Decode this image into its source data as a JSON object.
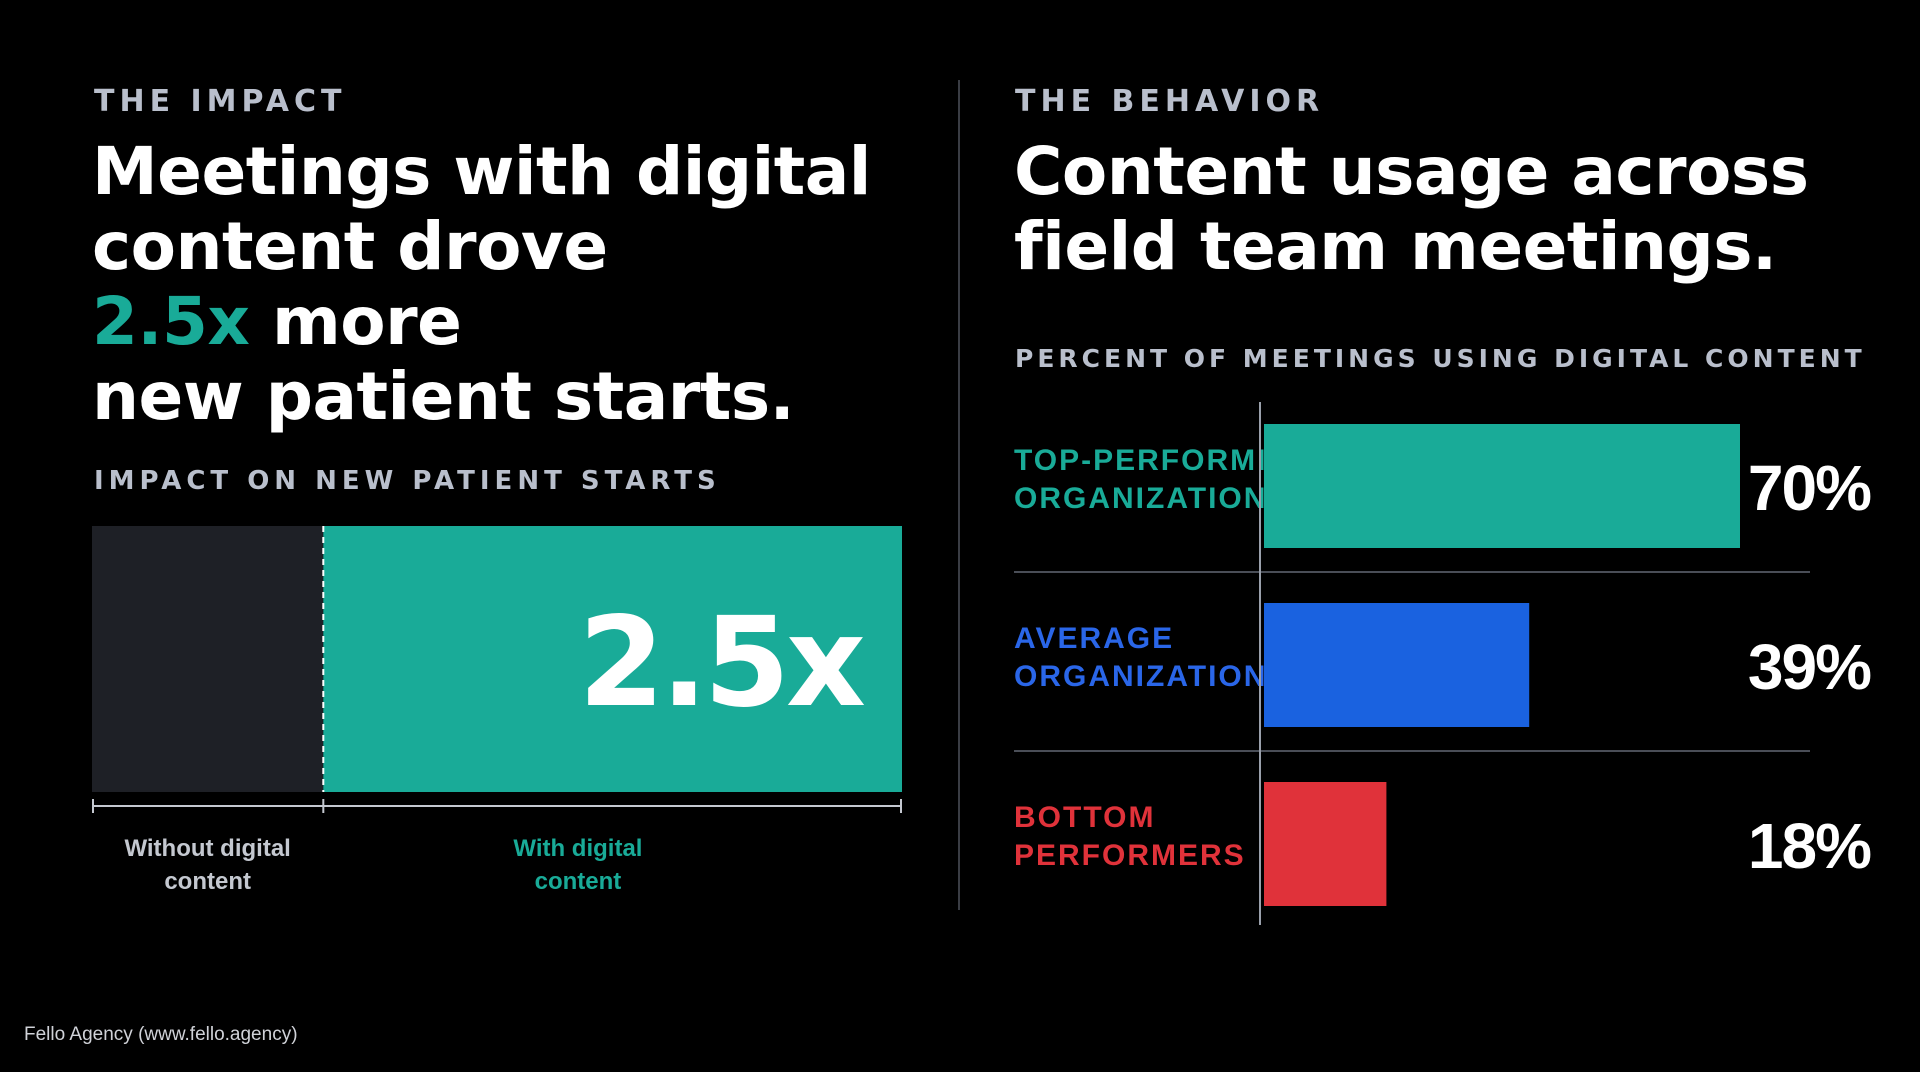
{
  "colors": {
    "background": "#000000",
    "teal": "#19ab98",
    "blue": "#1a62e0",
    "red": "#e0323a",
    "muted": "#b9bfcc",
    "dark_bar": "#1e2026",
    "white": "#ffffff"
  },
  "left": {
    "eyebrow": "THE IMPACT",
    "headline": {
      "line1": "Meetings with digital",
      "line2": "content drove",
      "line3_highlight": "2.5x",
      "line3_rest": " more",
      "line4": "new patient starts."
    },
    "chart_label": "IMPACT ON NEW PATIENT STARTS"
  },
  "right": {
    "eyebrow": "THE BEHAVIOR",
    "headline": {
      "line1": "Content usage across",
      "line2": "field team meetings."
    },
    "chart_label": "PERCENT OF MEETINGS USING DIGITAL CONTENT",
    "rows": [
      {
        "label_line1": "TOP-PERFORMING",
        "label_line2": "ORGANIZATIONS",
        "color": "#19ab98"
      },
      {
        "label_line1": "AVERAGE",
        "label_line2": "ORGANIZATIONS",
        "color": "#2a66e8"
      },
      {
        "label_line1": "BOTTOM",
        "label_line2": "PERFORMERS",
        "color": "#e0323a"
      }
    ]
  },
  "footer": "Fello Agency (www.fello.agency)",
  "chart_data": [
    {
      "type": "bar",
      "orientation": "horizontal-stacked",
      "title": "IMPACT ON NEW PATIENT STARTS",
      "categories": [
        "Without digital content",
        "With digital content"
      ],
      "values": [
        1,
        2.5
      ],
      "value_label": "2.5x",
      "colors": [
        "#1e2026",
        "#19ab98"
      ],
      "label_colors": [
        "#c4c8d0",
        "#19ab98"
      ]
    },
    {
      "type": "bar",
      "orientation": "horizontal",
      "title": "PERCENT OF MEETINGS USING DIGITAL CONTENT",
      "categories": [
        "TOP-PERFORMING ORGANIZATIONS",
        "AVERAGE ORGANIZATIONS",
        "BOTTOM PERFORMERS"
      ],
      "values": [
        70,
        39,
        18
      ],
      "value_labels": [
        "70%",
        "39%",
        "18%"
      ],
      "colors": [
        "#19ab98",
        "#1a62e0",
        "#e0323a"
      ],
      "xlim": [
        0,
        70
      ]
    }
  ]
}
